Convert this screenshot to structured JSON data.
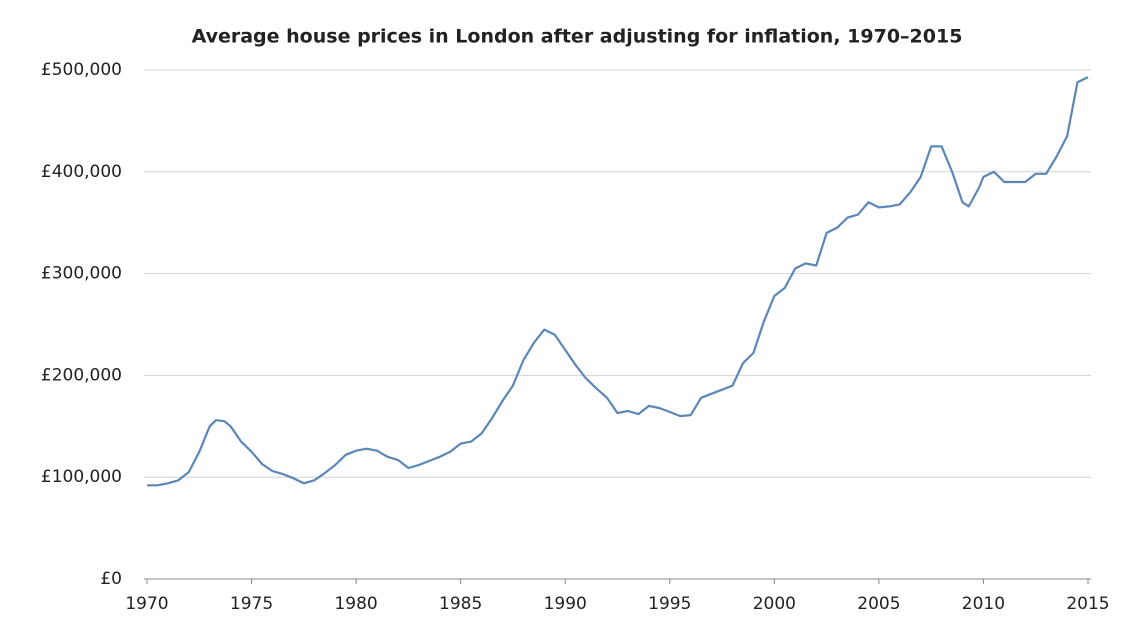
{
  "chart_data": {
    "type": "line",
    "title": "Average house prices in London after adjusting for inflation, 1970–2015",
    "x": [
      1970,
      1970.5,
      1971,
      1971.5,
      1972,
      1972.5,
      1973,
      1973.3,
      1973.7,
      1974,
      1974.5,
      1975,
      1975.5,
      1976,
      1976.5,
      1977,
      1977.5,
      1978,
      1978.5,
      1979,
      1979.5,
      1980,
      1980.5,
      1981,
      1981.5,
      1982,
      1982.5,
      1983,
      1983.5,
      1984,
      1984.5,
      1985,
      1985.5,
      1986,
      1986.5,
      1987,
      1987.5,
      1988,
      1988.5,
      1989,
      1989.5,
      1990,
      1990.5,
      1991,
      1991.5,
      1992,
      1992.5,
      1993,
      1993.5,
      1994,
      1994.5,
      1995,
      1995.5,
      1996,
      1996.5,
      1997,
      1997.5,
      1998,
      1998.5,
      1999,
      1999.5,
      2000,
      2000.5,
      2001,
      2001.5,
      2002,
      2002.5,
      2003,
      2003.5,
      2004,
      2004.5,
      2005,
      2005.5,
      2006,
      2006.5,
      2007,
      2007.5,
      2008,
      2008.5,
      2009,
      2009.3,
      2009.8,
      2010,
      2010.5,
      2011,
      2011.5,
      2012,
      2012.5,
      2013,
      2013.5,
      2014,
      2014.5,
      2015
    ],
    "series": [
      {
        "name": "Average house price",
        "color": "#5b86b8",
        "values": [
          92000,
          92000,
          94000,
          97000,
          105000,
          125000,
          150000,
          156000,
          155000,
          150000,
          135000,
          125000,
          113000,
          106000,
          103000,
          99000,
          94000,
          97000,
          104000,
          112000,
          122000,
          126000,
          128000,
          126000,
          120000,
          117000,
          109000,
          112000,
          116000,
          120000,
          125000,
          133000,
          135000,
          143000,
          158000,
          175000,
          190000,
          215000,
          232000,
          245000,
          240000,
          225000,
          210000,
          197000,
          187000,
          178000,
          163000,
          165000,
          162000,
          170000,
          168000,
          164000,
          160000,
          161000,
          178000,
          182000,
          186000,
          190000,
          212000,
          222000,
          253000,
          278000,
          286000,
          305000,
          310000,
          308000,
          340000,
          345000,
          355000,
          358000,
          370000,
          365000,
          366000,
          368000,
          380000,
          395000,
          425000,
          425000,
          400000,
          370000,
          366000,
          385000,
          395000,
          400000,
          390000,
          390000,
          390000,
          398000,
          398000,
          415000,
          435000,
          488000,
          493000
        ]
      }
    ],
    "xlim": [
      1970,
      2015
    ],
    "xticks": [
      1970,
      1975,
      1980,
      1985,
      1990,
      1995,
      2000,
      2005,
      2010,
      2015
    ],
    "ylim": [
      0,
      500000
    ],
    "yticks": [
      {
        "value": 0,
        "label": "£0"
      },
      {
        "value": 100000,
        "label": "£100,000"
      },
      {
        "value": 200000,
        "label": "£200,000"
      },
      {
        "value": 300000,
        "label": "£300,000"
      },
      {
        "value": 400000,
        "label": "£400,000"
      },
      {
        "value": 500000,
        "label": "£500,000"
      }
    ],
    "grid": true
  }
}
